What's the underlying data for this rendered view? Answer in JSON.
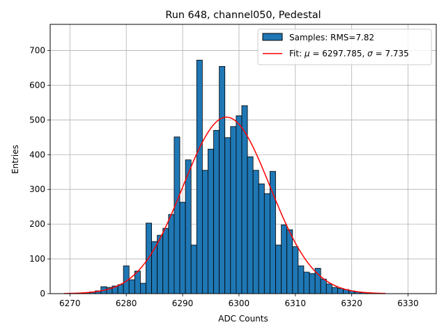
{
  "chart_data": {
    "type": "bar",
    "title": "Run 648, channel050, Pedestal",
    "xlabel": "ADC Counts",
    "ylabel": "Entries",
    "xlim": [
      6266.5,
      6335
    ],
    "ylim": [
      0,
      775
    ],
    "xticks": [
      6270,
      6280,
      6290,
      6300,
      6310,
      6320,
      6330
    ],
    "yticks": [
      0,
      100,
      200,
      300,
      400,
      500,
      600,
      700
    ],
    "grid": true,
    "legend_position": "top-right",
    "legend": {
      "samples_label": "Samples: RMS=7.82",
      "fit_label_prefix": "Fit: ",
      "fit_mu_symbol": "μ",
      "fit_mu_value": " = 6297.785, ",
      "fit_sigma_symbol": "σ",
      "fit_sigma_value": " = 7.735"
    },
    "bin_width": 1,
    "histogram": {
      "x": [
        6270,
        6271,
        6272,
        6273,
        6274,
        6275,
        6276,
        6277,
        6278,
        6279,
        6280,
        6281,
        6282,
        6283,
        6284,
        6285,
        6286,
        6287,
        6288,
        6289,
        6290,
        6291,
        6292,
        6293,
        6294,
        6295,
        6296,
        6297,
        6298,
        6299,
        6300,
        6301,
        6302,
        6303,
        6304,
        6305,
        6306,
        6307,
        6308,
        6309,
        6310,
        6311,
        6312,
        6313,
        6314,
        6315,
        6316,
        6317,
        6318,
        6319,
        6320,
        6321,
        6322,
        6323,
        6324,
        6325
      ],
      "values": [
        1,
        1,
        2,
        3,
        5,
        8,
        20,
        18,
        22,
        26,
        80,
        40,
        65,
        30,
        203,
        150,
        168,
        188,
        228,
        451,
        263,
        385,
        140,
        672,
        355,
        416,
        470,
        654,
        449,
        481,
        512,
        541,
        394,
        355,
        316,
        288,
        352,
        140,
        198,
        184,
        135,
        80,
        62,
        58,
        73,
        42,
        28,
        18,
        15,
        12,
        8,
        5,
        3,
        2,
        1,
        1
      ]
    },
    "fit": {
      "mu": 6297.785,
      "sigma": 7.735,
      "amplitude": 508,
      "x_range": [
        6269,
        6326
      ],
      "color": "#ff0000"
    },
    "bar_color": "#1f77b4",
    "bar_edge_color": "#000000"
  }
}
